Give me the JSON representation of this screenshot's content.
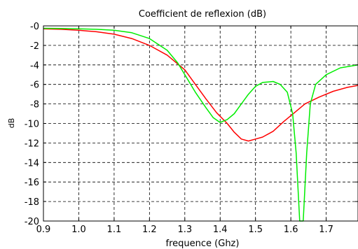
{
  "chart_data": {
    "type": "line",
    "title": "Coefficient de reflexion (dB)",
    "xlabel": "frequence (Ghz)",
    "ylabel": "dB",
    "xlim": [
      0.9,
      1.79
    ],
    "ylim": [
      -20,
      0
    ],
    "x_ticks": [
      0.9,
      1.0,
      1.1,
      1.2,
      1.3,
      1.4,
      1.5,
      1.6,
      1.7
    ],
    "x_tick_labels": [
      "0.9",
      "1.0",
      "1.1",
      "1.2",
      "1.3",
      "1.4",
      "1.5",
      "1.6",
      "1.7"
    ],
    "y_ticks": [
      0,
      -2,
      -4,
      -6,
      -8,
      -10,
      -12,
      -14,
      -16,
      -18,
      -20
    ],
    "y_tick_labels": [
      "-0",
      "-2",
      "-4",
      "-6",
      "-8",
      "-10",
      "-12",
      "-14",
      "-16",
      "-18",
      "-20"
    ],
    "grid": true,
    "series": [
      {
        "color": "#ff0000",
        "points": [
          [
            0.9,
            -0.3
          ],
          [
            0.95,
            -0.35
          ],
          [
            1.0,
            -0.45
          ],
          [
            1.05,
            -0.6
          ],
          [
            1.1,
            -0.85
          ],
          [
            1.15,
            -1.3
          ],
          [
            1.2,
            -2.0
          ],
          [
            1.25,
            -3.0
          ],
          [
            1.3,
            -4.5
          ],
          [
            1.33,
            -6.0
          ],
          [
            1.36,
            -7.5
          ],
          [
            1.39,
            -8.9
          ],
          [
            1.42,
            -10.0
          ],
          [
            1.44,
            -10.9
          ],
          [
            1.46,
            -11.6
          ],
          [
            1.48,
            -11.8
          ],
          [
            1.5,
            -11.6
          ],
          [
            1.52,
            -11.4
          ],
          [
            1.55,
            -10.8
          ],
          [
            1.58,
            -9.8
          ],
          [
            1.61,
            -8.9
          ],
          [
            1.64,
            -8.0
          ],
          [
            1.68,
            -7.3
          ],
          [
            1.72,
            -6.7
          ],
          [
            1.76,
            -6.3
          ],
          [
            1.79,
            -6.1
          ]
        ]
      },
      {
        "color": "#00ee00",
        "points": [
          [
            0.9,
            -0.25
          ],
          [
            0.95,
            -0.27
          ],
          [
            1.0,
            -0.3
          ],
          [
            1.05,
            -0.35
          ],
          [
            1.1,
            -0.45
          ],
          [
            1.15,
            -0.7
          ],
          [
            1.2,
            -1.3
          ],
          [
            1.25,
            -2.5
          ],
          [
            1.28,
            -3.8
          ],
          [
            1.3,
            -5.0
          ],
          [
            1.33,
            -6.8
          ],
          [
            1.36,
            -8.4
          ],
          [
            1.38,
            -9.4
          ],
          [
            1.4,
            -9.9
          ],
          [
            1.42,
            -9.6
          ],
          [
            1.44,
            -9.0
          ],
          [
            1.46,
            -8.0
          ],
          [
            1.48,
            -7.0
          ],
          [
            1.5,
            -6.2
          ],
          [
            1.52,
            -5.8
          ],
          [
            1.55,
            -5.7
          ],
          [
            1.57,
            -6.0
          ],
          [
            1.59,
            -6.8
          ],
          [
            1.605,
            -9.0
          ],
          [
            1.615,
            -13.0
          ],
          [
            1.625,
            -20.0
          ],
          [
            1.635,
            -20.0
          ],
          [
            1.645,
            -13.0
          ],
          [
            1.655,
            -8.0
          ],
          [
            1.67,
            -6.0
          ],
          [
            1.7,
            -5.0
          ],
          [
            1.74,
            -4.3
          ],
          [
            1.79,
            -4.0
          ]
        ]
      }
    ]
  }
}
